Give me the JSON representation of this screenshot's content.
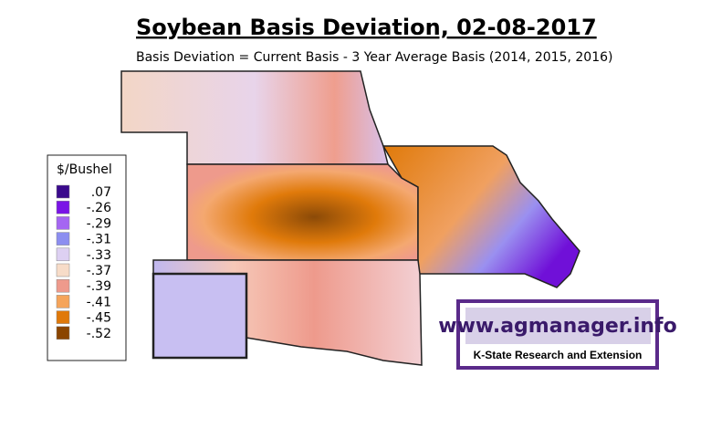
{
  "header": {
    "title": "Soybean Basis Deviation, 02-08-2017",
    "subtitle": "Basis Deviation = Current Basis - 3 Year Average Basis (2014, 2015, 2016)"
  },
  "legend": {
    "title": "$/Bushel",
    "items": [
      {
        "label": ".07",
        "color": "#3a0a8c"
      },
      {
        "label": "-.26",
        "color": "#7a14e6"
      },
      {
        "label": "-.29",
        "color": "#a566f2"
      },
      {
        "label": "-.31",
        "color": "#8c8ef0"
      },
      {
        "label": "-.33",
        "color": "#ddd0f2"
      },
      {
        "label": "-.37",
        "color": "#f7dcc8"
      },
      {
        "label": "-.39",
        "color": "#ee9a8c"
      },
      {
        "label": "-.41",
        "color": "#f5a45a"
      },
      {
        "label": "-.45",
        "color": "#e0790a"
      },
      {
        "label": "-.52",
        "color": "#8b4500"
      }
    ]
  },
  "logo": {
    "url": "www.agmanager.info",
    "org": "K-State Research and Extension"
  }
}
